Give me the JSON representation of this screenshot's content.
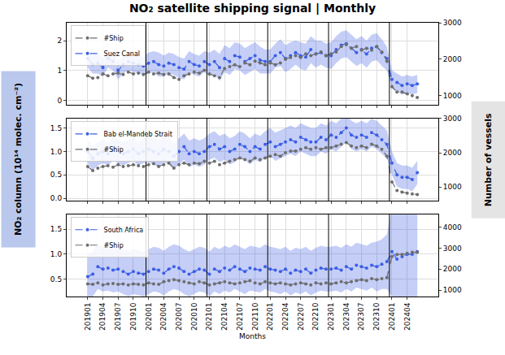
{
  "chart_data": {
    "type": "line",
    "title": "NO₂ satellite shipping signal | Monthly",
    "x_label": "Months",
    "y_label": "NO₂ column (10¹⁴ molec. cm⁻²)",
    "y2_label": "Number of vessels",
    "grid": true,
    "legend": "upper left",
    "categories": [
      "201901",
      null,
      null,
      "201904",
      null,
      null,
      "201907",
      null,
      null,
      "201910",
      null,
      null,
      "202001",
      null,
      null,
      "202004",
      null,
      null,
      "202007",
      null,
      null,
      "202010",
      null,
      null,
      "202101",
      null,
      null,
      "202104",
      null,
      null,
      "202107",
      null,
      null,
      "202110",
      null,
      null,
      "202201",
      null,
      null,
      "202204",
      null,
      null,
      "202207",
      null,
      null,
      "202210",
      null,
      null,
      "202301",
      null,
      null,
      "202304",
      null,
      null,
      "202307",
      null,
      null,
      "202310",
      null,
      null,
      "202401",
      null,
      null,
      "202404",
      null,
      null
    ],
    "panels": [
      {
        "ylim": [
          -0.15,
          2.6
        ],
        "yticks": [
          0,
          1,
          2
        ],
        "y2lim": [
          750,
          3000
        ],
        "y2ticks": [
          1000,
          2000,
          3000
        ],
        "series": [
          {
            "name": "Suez Canal",
            "color": "#3b5ee6",
            "marker": "circle",
            "line_style": "dashed",
            "values": [
              1.4,
              1.2,
              1.25,
              1.1,
              1.4,
              1.3,
              1.0,
              1.2,
              1.3,
              1.25,
              1.2,
              1.15,
              1.25,
              1.3,
              1.2,
              1.15,
              1.25,
              1.2,
              1.1,
              1.05,
              1.3,
              1.2,
              1.15,
              1.3,
              1.2,
              1.3,
              1.1,
              1.4,
              1.3,
              1.5,
              1.45,
              1.3,
              1.4,
              1.5,
              1.35,
              1.3,
              1.3,
              1.5,
              1.6,
              1.4,
              1.5,
              1.6,
              1.5,
              1.45,
              1.7,
              1.55,
              1.6,
              1.5,
              1.5,
              1.7,
              1.85,
              1.9,
              1.75,
              1.6,
              1.7,
              1.55,
              1.75,
              1.8,
              1.6,
              1.4,
              0.7,
              0.6,
              0.5,
              0.55,
              0.5,
              0.55
            ],
            "error": [
              0.3,
              0.3,
              0.35,
              0.3,
              0.3,
              0.3,
              0.3,
              0.3,
              0.3,
              0.3,
              0.3,
              0.3,
              0.35,
              0.35,
              0.4,
              0.35,
              0.35,
              0.35,
              0.35,
              0.35,
              0.35,
              0.35,
              0.35,
              0.35,
              0.4,
              0.4,
              0.45,
              0.45,
              0.45,
              0.45,
              0.45,
              0.45,
              0.45,
              0.45,
              0.45,
              0.4,
              0.4,
              0.4,
              0.45,
              0.45,
              0.45,
              0.4,
              0.45,
              0.45,
              0.45,
              0.45,
              0.4,
              0.4,
              0.45,
              0.45,
              0.45,
              0.45,
              0.45,
              0.45,
              0.45,
              0.45,
              0.45,
              0.45,
              0.45,
              0.4,
              0.3,
              0.3,
              0.3,
              0.3,
              0.3,
              0.3
            ]
          },
          {
            "name": "#Ship",
            "color": "#6e6e6e",
            "marker": "circle",
            "line_style": "dashed",
            "axis": "y2",
            "values": [
              1550,
              1480,
              1500,
              1600,
              1550,
              1600,
              1620,
              1580,
              1650,
              1600,
              1620,
              1580,
              1650,
              1600,
              1620,
              1580,
              1600,
              1500,
              1450,
              1550,
              1600,
              1650,
              1620,
              1700,
              1600,
              1550,
              1500,
              1750,
              1800,
              1850,
              1800,
              1900,
              1850,
              1950,
              1900,
              1850,
              1900,
              1850,
              1900,
              2000,
              2050,
              2100,
              2050,
              2150,
              2100,
              2150,
              2200,
              2100,
              2150,
              2200,
              2350,
              2400,
              2300,
              2350,
              2250,
              2300,
              2250,
              2350,
              2200,
              1950,
              1250,
              1100,
              1100,
              1050,
              1000,
              950
            ]
          }
        ]
      },
      {
        "ylim": [
          -0.05,
          1.7
        ],
        "yticks": [
          {
            "value": 0,
            "label": "0.0"
          },
          0.5,
          {
            "value": 1,
            "label": "1.0"
          },
          1.5
        ],
        "y2lim": [
          600,
          3000
        ],
        "y2ticks": [
          1000,
          2000,
          3000
        ],
        "series": [
          {
            "name": "Bab el-Mandeb Strait",
            "color": "#3b5ee6",
            "marker": "circle",
            "line_style": "dashed",
            "values": [
              1.0,
              0.85,
              0.95,
              1.0,
              0.95,
              1.05,
              1.0,
              0.95,
              1.0,
              1.05,
              0.95,
              1.0,
              1.05,
              1.0,
              0.95,
              1.05,
              1.0,
              0.9,
              1.0,
              1.1,
              0.95,
              1.0,
              0.95,
              1.0,
              1.1,
              1.15,
              1.05,
              1.1,
              1.0,
              1.05,
              1.15,
              1.1,
              1.0,
              1.1,
              1.05,
              1.15,
              1.2,
              1.1,
              1.15,
              1.2,
              1.25,
              1.2,
              1.3,
              1.25,
              1.2,
              1.2,
              1.3,
              1.25,
              1.35,
              1.3,
              1.4,
              1.5,
              1.35,
              1.3,
              1.35,
              1.3,
              1.4,
              1.35,
              1.25,
              1.15,
              0.75,
              0.5,
              0.45,
              0.45,
              0.4,
              0.55
            ],
            "error": [
              0.25,
              0.25,
              0.25,
              0.25,
              0.25,
              0.25,
              0.25,
              0.25,
              0.25,
              0.25,
              0.25,
              0.25,
              0.28,
              0.28,
              0.28,
              0.28,
              0.28,
              0.28,
              0.28,
              0.28,
              0.28,
              0.28,
              0.28,
              0.28,
              0.28,
              0.28,
              0.28,
              0.28,
              0.28,
              0.28,
              0.28,
              0.28,
              0.28,
              0.28,
              0.28,
              0.28,
              0.3,
              0.3,
              0.3,
              0.3,
              0.3,
              0.3,
              0.3,
              0.3,
              0.3,
              0.3,
              0.3,
              0.3,
              0.3,
              0.3,
              0.3,
              0.3,
              0.3,
              0.3,
              0.3,
              0.3,
              0.3,
              0.3,
              0.3,
              0.3,
              0.25,
              0.25,
              0.25,
              0.25,
              0.25,
              0.25
            ]
          },
          {
            "name": "#Ship",
            "color": "#6e6e6e",
            "marker": "circle",
            "line_style": "dashed",
            "axis": "y2",
            "values": [
              1600,
              1480,
              1550,
              1600,
              1620,
              1580,
              1650,
              1600,
              1620,
              1650,
              1620,
              1600,
              1650,
              1680,
              1600,
              1650,
              1700,
              1550,
              1650,
              1700,
              1650,
              1700,
              1680,
              1750,
              1700,
              1750,
              1650,
              1700,
              1750,
              1800,
              1850,
              1800,
              1750,
              1850,
              1800,
              1850,
              1900,
              1950,
              1900,
              2000,
              2050,
              2050,
              2100,
              2150,
              2100,
              2150,
              2100,
              2150,
              2150,
              2200,
              2250,
              2300,
              2200,
              2150,
              2200,
              2150,
              2250,
              2200,
              2100,
              1900,
              1150,
              900,
              850,
              820,
              800,
              780
            ]
          }
        ]
      },
      {
        "ylim": [
          0.15,
          1.8
        ],
        "yticks": [
          0.5,
          {
            "value": 1,
            "label": "1.0"
          },
          1.5
        ],
        "y2lim": [
          700,
          4600
        ],
        "y2ticks": [
          1000,
          2000,
          3000,
          4000
        ],
        "series": [
          {
            "name": "South Africa",
            "color": "#3b5ee6",
            "marker": "circle",
            "line_style": "dashed",
            "values": [
              0.55,
              0.6,
              0.75,
              0.7,
              0.72,
              0.68,
              0.7,
              0.65,
              0.6,
              0.65,
              0.62,
              0.6,
              0.65,
              0.7,
              0.68,
              0.62,
              0.7,
              0.75,
              0.72,
              0.65,
              0.6,
              0.65,
              0.7,
              0.68,
              0.6,
              0.7,
              0.65,
              0.72,
              0.68,
              0.75,
              0.7,
              0.65,
              0.72,
              0.7,
              0.68,
              0.75,
              0.7,
              0.68,
              0.65,
              0.7,
              0.62,
              0.68,
              0.65,
              0.7,
              0.62,
              0.68,
              0.72,
              0.7,
              0.7,
              0.72,
              0.68,
              0.75,
              0.7,
              0.78,
              0.75,
              0.72,
              0.78,
              0.75,
              0.8,
              0.85,
              1.05,
              0.9,
              0.95,
              1.0,
              1.0,
              1.05
            ],
            "error": [
              0.45,
              0.45,
              0.45,
              0.45,
              0.45,
              0.45,
              0.45,
              0.45,
              0.45,
              0.45,
              0.45,
              0.45,
              0.45,
              0.45,
              0.45,
              0.45,
              0.45,
              0.45,
              0.45,
              0.45,
              0.45,
              0.45,
              0.45,
              0.45,
              0.45,
              0.45,
              0.45,
              0.45,
              0.45,
              0.45,
              0.45,
              0.45,
              0.45,
              0.45,
              0.45,
              0.45,
              0.45,
              0.45,
              0.45,
              0.45,
              0.45,
              0.45,
              0.45,
              0.45,
              0.45,
              0.45,
              0.45,
              0.45,
              0.45,
              0.45,
              0.45,
              0.45,
              0.45,
              0.45,
              0.45,
              0.45,
              0.45,
              0.5,
              0.5,
              0.55,
              0.9,
              0.9,
              0.9,
              0.9,
              0.9,
              0.9
            ]
          },
          {
            "name": "#Ship",
            "color": "#6e6e6e",
            "marker": "circle",
            "line_style": "dashed",
            "axis": "y2",
            "values": [
              1300,
              1280,
              1350,
              1250,
              1300,
              1320,
              1280,
              1300,
              1250,
              1300,
              1280,
              1250,
              1350,
              1300,
              1280,
              1400,
              1450,
              1500,
              1450,
              1400,
              1350,
              1300,
              1400,
              1350,
              1250,
              1300,
              1350,
              1400,
              1350,
              1300,
              1350,
              1400,
              1450,
              1350,
              1300,
              1400,
              1350,
              1300,
              1350,
              1300,
              1250,
              1300,
              1350,
              1300,
              1250,
              1350,
              1300,
              1350,
              1300,
              1350,
              1400,
              1350,
              1400,
              1450,
              1500,
              1450,
              1550,
              1500,
              1550,
              1600,
              2600,
              2700,
              2700,
              2750,
              2800,
              2800
            ]
          }
        ]
      }
    ]
  }
}
